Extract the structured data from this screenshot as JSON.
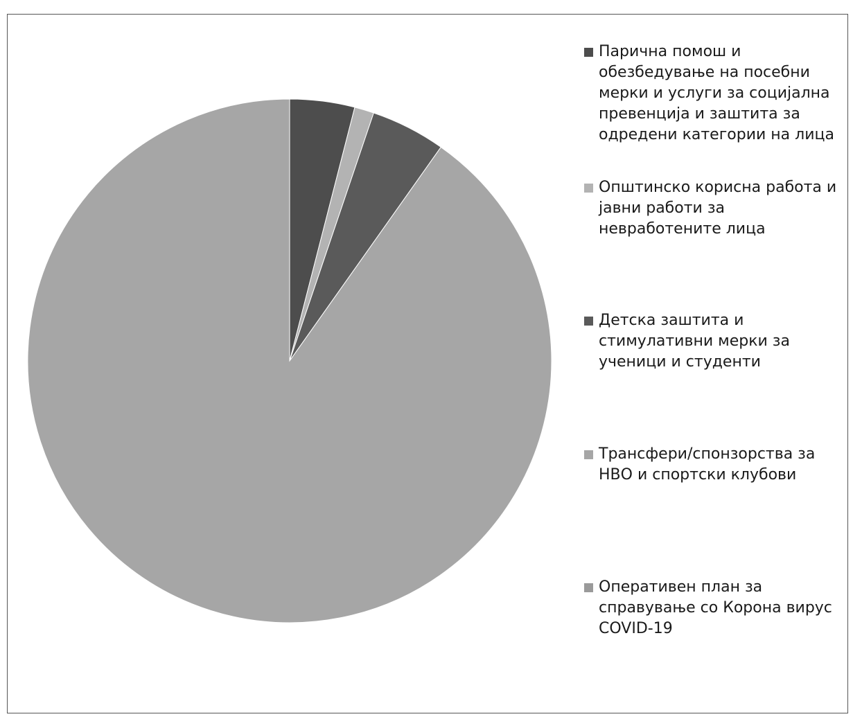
{
  "chart_data": {
    "type": "pie",
    "title": "",
    "start_angle_deg": 0,
    "direction": "clockwise",
    "legend_position": "right",
    "slices": [
      {
        "label": "Парична помош и\nобезбедување на посебни\nмерки и услуги за социјална\nпревенција и заштита за\nодредени категории на лица",
        "value": 4.0,
        "color": "#4d4d4d"
      },
      {
        "label": "Општинско корисна работа и\nјавни работи за\nневработените лица",
        "value": 1.2,
        "color": "#b3b3b3"
      },
      {
        "label": "Детска заштита и\nстимулативни мерки за\nученици и студенти",
        "value": 4.6,
        "color": "#5a5a5a"
      },
      {
        "label": "Трансфери/спонзорства за\nНВО и спортски клубови",
        "value": 90.2,
        "color": "#a6a6a6"
      },
      {
        "label": "Оперативен план за\nсправување со Корона вирус\nCOVID-19",
        "value": 0.0,
        "color": "#9a9a9a"
      }
    ]
  }
}
